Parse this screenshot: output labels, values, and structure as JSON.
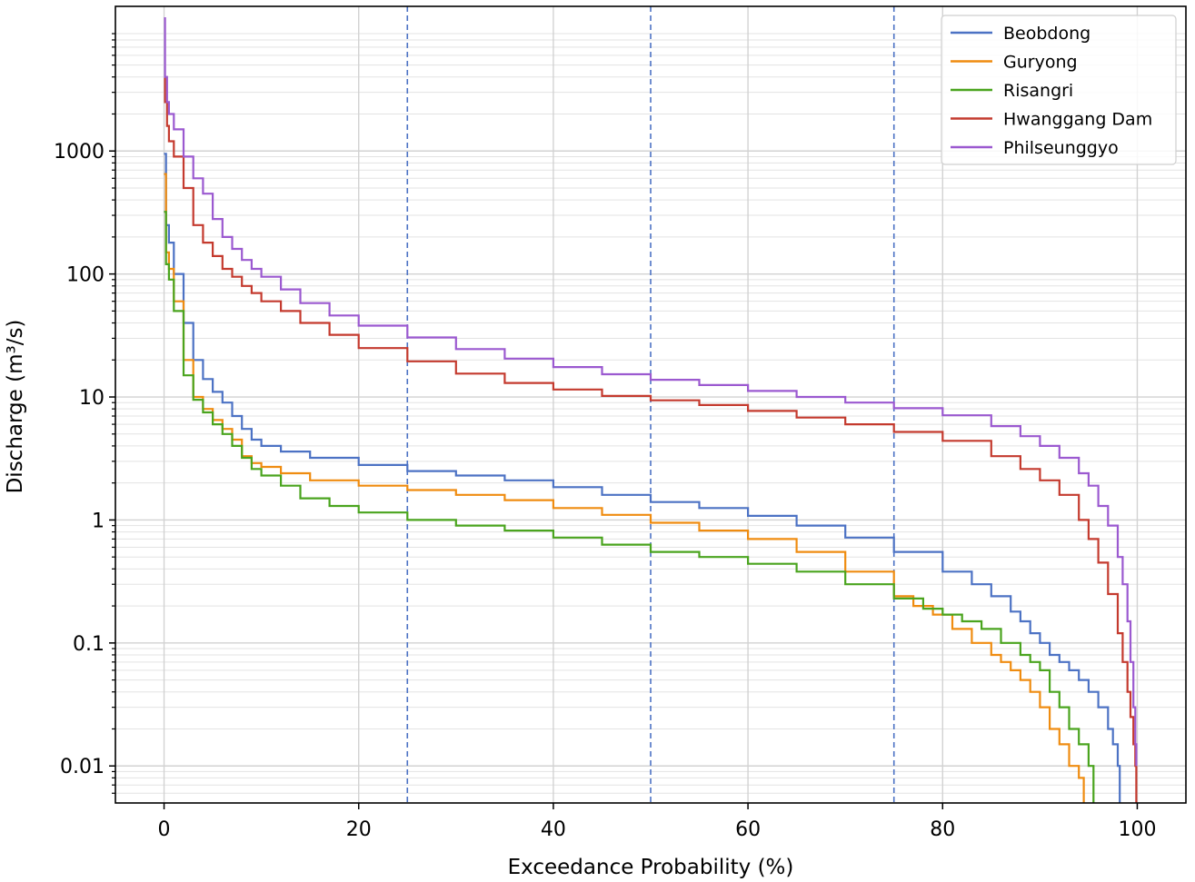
{
  "chart_data": {
    "type": "line",
    "xlabel": "Exceedance Probability (%)",
    "ylabel": "Discharge (m³/s)",
    "xlim": [
      -5,
      105
    ],
    "ylim": [
      0.005,
      15000
    ],
    "y_scale": "log",
    "x_ticks": [
      0,
      20,
      40,
      60,
      80,
      100
    ],
    "x_tick_labels": [
      "0",
      "20",
      "40",
      "60",
      "80",
      "100"
    ],
    "y_ticks": [
      0.01,
      0.1,
      1,
      10,
      100,
      1000
    ],
    "y_tick_labels": [
      "0.01",
      "0.1",
      "1",
      "10",
      "100",
      "1000"
    ],
    "grid": true,
    "reference_lines_x": [
      25,
      50,
      75
    ],
    "legend_position": "top-right",
    "series": [
      {
        "name": "Beobdong",
        "color": "#4c72c4",
        "x": [
          0,
          0.2,
          0.5,
          1,
          2,
          3,
          4,
          5,
          6,
          7,
          8,
          9,
          10,
          12,
          15,
          20,
          25,
          30,
          35,
          40,
          45,
          50,
          55,
          60,
          65,
          70,
          75,
          80,
          83,
          85,
          87,
          88,
          89,
          90,
          91,
          92,
          93,
          94,
          95,
          96,
          97,
          97.5,
          98,
          98.2
        ],
        "y": [
          950,
          250,
          180,
          100,
          40,
          20,
          14,
          11,
          9,
          7,
          5.5,
          4.5,
          4.0,
          3.6,
          3.2,
          2.8,
          2.5,
          2.3,
          2.1,
          1.85,
          1.6,
          1.4,
          1.25,
          1.08,
          0.9,
          0.72,
          0.55,
          0.38,
          0.3,
          0.24,
          0.18,
          0.15,
          0.12,
          0.1,
          0.08,
          0.07,
          0.06,
          0.05,
          0.04,
          0.03,
          0.02,
          0.015,
          0.01,
          0.005
        ]
      },
      {
        "name": "Guryong",
        "color": "#ef8c10",
        "x": [
          0,
          0.2,
          0.5,
          1,
          2,
          3,
          4,
          5,
          6,
          7,
          8,
          9,
          10,
          12,
          15,
          20,
          25,
          30,
          35,
          40,
          45,
          50,
          55,
          60,
          65,
          70,
          75,
          77,
          79,
          81,
          83,
          85,
          86,
          87,
          88,
          89,
          90,
          91,
          92,
          93,
          94,
          94.5
        ],
        "y": [
          650,
          150,
          110,
          60,
          20,
          10,
          8,
          6.5,
          5.5,
          4.5,
          3.3,
          2.9,
          2.7,
          2.4,
          2.1,
          1.9,
          1.75,
          1.6,
          1.45,
          1.25,
          1.1,
          0.95,
          0.82,
          0.7,
          0.55,
          0.38,
          0.24,
          0.2,
          0.17,
          0.13,
          0.1,
          0.08,
          0.07,
          0.06,
          0.05,
          0.04,
          0.03,
          0.02,
          0.015,
          0.01,
          0.008,
          0.005
        ]
      },
      {
        "name": "Risangri",
        "color": "#4aa41e",
        "x": [
          0,
          0.2,
          0.5,
          1,
          2,
          3,
          4,
          5,
          6,
          7,
          8,
          9,
          10,
          12,
          14,
          17,
          20,
          25,
          30,
          35,
          40,
          45,
          50,
          55,
          60,
          65,
          70,
          75,
          78,
          80,
          82,
          84,
          86,
          88,
          89,
          90,
          91,
          92,
          93,
          94,
          95,
          95.5
        ],
        "y": [
          320,
          120,
          90,
          50,
          15,
          9.5,
          7.5,
          6,
          5,
          4,
          3.2,
          2.6,
          2.3,
          1.9,
          1.5,
          1.3,
          1.15,
          1.0,
          0.9,
          0.82,
          0.72,
          0.63,
          0.55,
          0.5,
          0.44,
          0.38,
          0.3,
          0.23,
          0.19,
          0.17,
          0.15,
          0.13,
          0.1,
          0.08,
          0.07,
          0.06,
          0.04,
          0.03,
          0.02,
          0.015,
          0.01,
          0.005
        ]
      },
      {
        "name": "Hwanggang Dam",
        "color": "#c43a2e",
        "x": [
          0,
          0.1,
          0.3,
          0.5,
          1,
          2,
          3,
          4,
          5,
          6,
          7,
          8,
          9,
          10,
          12,
          14,
          17,
          20,
          25,
          30,
          35,
          40,
          45,
          50,
          55,
          60,
          65,
          70,
          75,
          80,
          85,
          88,
          90,
          92,
          94,
          95,
          96,
          97,
          98,
          98.5,
          99,
          99.3,
          99.6,
          99.8,
          99.9
        ],
        "y": [
          4000,
          2500,
          1600,
          1200,
          900,
          500,
          250,
          180,
          140,
          110,
          95,
          80,
          70,
          60,
          50,
          40,
          32,
          25,
          19.5,
          15.5,
          13,
          11.5,
          10.2,
          9.4,
          8.6,
          7.7,
          6.8,
          6.0,
          5.2,
          4.4,
          3.3,
          2.6,
          2.1,
          1.6,
          1.0,
          0.7,
          0.45,
          0.25,
          0.12,
          0.07,
          0.04,
          0.025,
          0.015,
          0.01,
          0.005
        ]
      },
      {
        "name": "Philseunggyo",
        "color": "#9b59d0",
        "x": [
          0,
          0.1,
          0.3,
          0.5,
          1,
          2,
          3,
          4,
          5,
          6,
          7,
          8,
          9,
          10,
          12,
          14,
          17,
          20,
          25,
          30,
          35,
          40,
          45,
          50,
          55,
          60,
          65,
          70,
          75,
          80,
          85,
          88,
          90,
          92,
          94,
          95,
          96,
          97,
          98,
          98.5,
          99,
          99.3,
          99.6,
          99.8,
          99.9
        ],
        "y": [
          12000,
          4000,
          2500,
          2000,
          1500,
          900,
          600,
          450,
          280,
          200,
          160,
          130,
          110,
          95,
          75,
          58,
          46,
          38,
          30.5,
          24.5,
          20.5,
          17.5,
          15.3,
          13.8,
          12.5,
          11.2,
          10,
          9,
          8.1,
          7.1,
          5.8,
          4.8,
          4.0,
          3.2,
          2.4,
          1.9,
          1.3,
          0.9,
          0.5,
          0.3,
          0.15,
          0.07,
          0.03,
          0.015,
          0.01
        ]
      }
    ]
  }
}
